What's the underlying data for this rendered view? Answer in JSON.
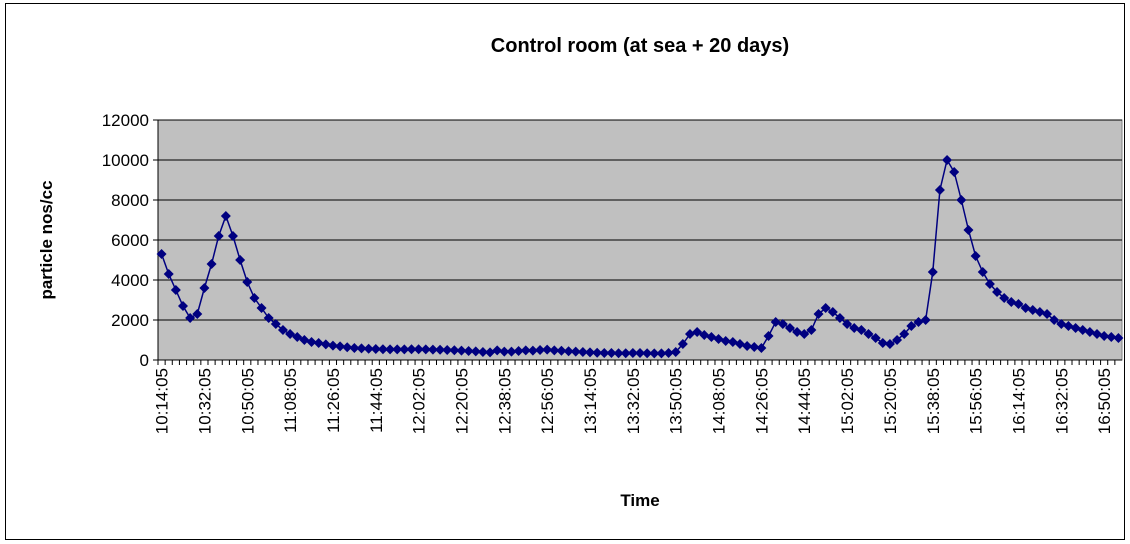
{
  "chart_data": {
    "type": "line",
    "title": "Control room (at sea + 20 days)",
    "x_label": "Time",
    "y_label": "particle nos/cc",
    "color": "#000080",
    "plot_background": "#c0c0c0",
    "grid": true,
    "marker": "diamond",
    "ylim": [
      0,
      12000
    ],
    "yticks": [
      0,
      2000,
      4000,
      6000,
      8000,
      10000,
      12000
    ],
    "categories": [
      "10:14:05",
      null,
      null,
      null,
      null,
      null,
      "10:32:05",
      null,
      null,
      null,
      null,
      null,
      "10:50:05",
      null,
      null,
      null,
      null,
      null,
      "11:08:05",
      null,
      null,
      null,
      null,
      null,
      "11:26:05",
      null,
      null,
      null,
      null,
      null,
      "11:44:05",
      null,
      null,
      null,
      null,
      null,
      "12:02:05",
      null,
      null,
      null,
      null,
      null,
      "12:20:05",
      null,
      null,
      null,
      null,
      null,
      "12:38:05",
      null,
      null,
      null,
      null,
      null,
      "12:56:05",
      null,
      null,
      null,
      null,
      null,
      "13:14:05",
      null,
      null,
      null,
      null,
      null,
      "13:32:05",
      null,
      null,
      null,
      null,
      null,
      "13:50:05",
      null,
      null,
      null,
      null,
      null,
      "14:08:05",
      null,
      null,
      null,
      null,
      null,
      "14:26:05",
      null,
      null,
      null,
      null,
      null,
      "14:44:05",
      null,
      null,
      null,
      null,
      null,
      "15:02:05",
      null,
      null,
      null,
      null,
      null,
      "15:20:05",
      null,
      null,
      null,
      null,
      null,
      "15:38:05",
      null,
      null,
      null,
      null,
      null,
      "15:56:05",
      null,
      null,
      null,
      null,
      null,
      "16:14:05",
      null,
      null,
      null,
      null,
      null,
      "16:32:05",
      null,
      null,
      null,
      null,
      null,
      "16:50:05",
      null,
      null
    ],
    "values": [
      5300,
      4300,
      3500,
      2700,
      2100,
      2300,
      3600,
      4800,
      6200,
      7200,
      6200,
      5000,
      3900,
      3100,
      2600,
      2100,
      1800,
      1500,
      1300,
      1150,
      1000,
      900,
      850,
      780,
      720,
      680,
      640,
      600,
      580,
      560,
      550,
      540,
      530,
      530,
      530,
      540,
      540,
      530,
      520,
      510,
      500,
      490,
      470,
      450,
      430,
      400,
      380,
      480,
      420,
      420,
      450,
      480,
      470,
      500,
      520,
      480,
      460,
      440,
      420,
      400,
      380,
      360,
      350,
      350,
      340,
      340,
      350,
      350,
      340,
      330,
      330,
      350,
      400,
      800,
      1300,
      1400,
      1250,
      1150,
      1050,
      950,
      900,
      800,
      700,
      650,
      600,
      1200,
      1900,
      1800,
      1600,
      1400,
      1300,
      1500,
      2300,
      2600,
      2400,
      2100,
      1800,
      1600,
      1500,
      1300,
      1100,
      850,
      800,
      1000,
      1300,
      1700,
      1900,
      2000,
      4400,
      8500,
      10000,
      9400,
      8000,
      6500,
      5200,
      4400,
      3800,
      3400,
      3100,
      2900,
      2800,
      2600,
      2500,
      2400,
      2300,
      2000,
      1800,
      1700,
      1600,
      1500,
      1400,
      1300,
      1200,
      1150,
      1100
    ]
  }
}
